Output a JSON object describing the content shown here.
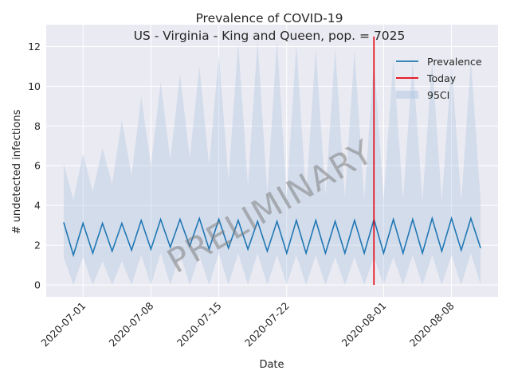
{
  "chart_data": {
    "type": "line",
    "title_line1": "Prevalence of COVID-19",
    "title_line2": "US - Virginia - King and Queen, pop. = 7025",
    "xlabel": "Date",
    "ylabel": "# undetected infections",
    "x_start": "2020-06-29",
    "ylim": [
      -0.6,
      13.1
    ],
    "y_ticks": [
      0,
      2,
      4,
      6,
      8,
      10,
      12
    ],
    "x_ticks": [
      "2020-07-01",
      "2020-07-08",
      "2020-07-15",
      "2020-07-22",
      "2020-08-01",
      "2020-08-08"
    ],
    "grid": true,
    "legend_position": "top-right",
    "legend": [
      "Prevalence",
      "Today",
      "95CI"
    ],
    "colors": {
      "prevalence": "#1f77b4",
      "today": "#e8000b",
      "ci": "#a8c4e0",
      "background": "#eaeaf2",
      "grid": "#ffffff"
    },
    "today": "2020-07-31",
    "today_range": [
      0,
      12.5
    ],
    "series": [
      {
        "name": "Prevalence",
        "x": [
          "2020-06-29",
          "2020-06-30",
          "2020-07-01",
          "2020-07-02",
          "2020-07-03",
          "2020-07-04",
          "2020-07-05",
          "2020-07-06",
          "2020-07-07",
          "2020-07-08",
          "2020-07-09",
          "2020-07-10",
          "2020-07-11",
          "2020-07-12",
          "2020-07-13",
          "2020-07-14",
          "2020-07-15",
          "2020-07-16",
          "2020-07-17",
          "2020-07-18",
          "2020-07-19",
          "2020-07-20",
          "2020-07-21",
          "2020-07-22",
          "2020-07-23",
          "2020-07-24",
          "2020-07-25",
          "2020-07-26",
          "2020-07-27",
          "2020-07-28",
          "2020-07-29",
          "2020-07-30",
          "2020-07-31",
          "2020-08-01",
          "2020-08-02",
          "2020-08-03",
          "2020-08-04",
          "2020-08-05",
          "2020-08-06",
          "2020-08-07",
          "2020-08-08",
          "2020-08-09",
          "2020-08-10",
          "2020-08-11"
        ],
        "values": [
          3.15,
          1.5,
          3.1,
          1.6,
          3.1,
          1.7,
          3.1,
          1.75,
          3.25,
          1.8,
          3.3,
          1.9,
          3.3,
          1.95,
          3.35,
          1.8,
          3.3,
          1.85,
          3.25,
          1.8,
          3.2,
          1.7,
          3.2,
          1.6,
          3.25,
          1.6,
          3.25,
          1.6,
          3.2,
          1.6,
          3.25,
          1.6,
          3.3,
          1.6,
          3.3,
          1.6,
          3.3,
          1.6,
          3.35,
          1.7,
          3.35,
          1.75,
          3.35,
          1.85
        ]
      },
      {
        "name": "95CI",
        "upper": [
          6.1,
          4.3,
          6.6,
          4.7,
          6.9,
          5.1,
          8.3,
          5.5,
          9.5,
          6.0,
          10.2,
          6.3,
          10.6,
          6.4,
          11.0,
          6.0,
          11.6,
          5.3,
          12.2,
          5.0,
          12.3,
          4.6,
          12.3,
          4.5,
          12.1,
          4.5,
          11.9,
          4.5,
          11.9,
          4.4,
          11.8,
          4.3,
          11.4,
          4.3,
          11.4,
          4.3,
          11.3,
          4.2,
          11.3,
          4.2,
          11.2,
          4.2,
          11.3,
          4.3
        ],
        "lower": [
          1.4,
          0,
          1.4,
          0,
          1.2,
          0,
          1.2,
          0,
          1.5,
          0,
          1.6,
          0,
          1.6,
          0,
          1.5,
          0,
          1.6,
          0,
          1.6,
          0,
          1.6,
          0,
          1.5,
          0,
          1.5,
          0,
          1.5,
          0,
          1.4,
          0,
          1.4,
          0,
          1.4,
          0,
          1.4,
          0,
          1.5,
          0,
          1.5,
          0,
          1.5,
          0,
          1.6,
          0
        ]
      }
    ],
    "watermark": "PRELIMINARY"
  }
}
